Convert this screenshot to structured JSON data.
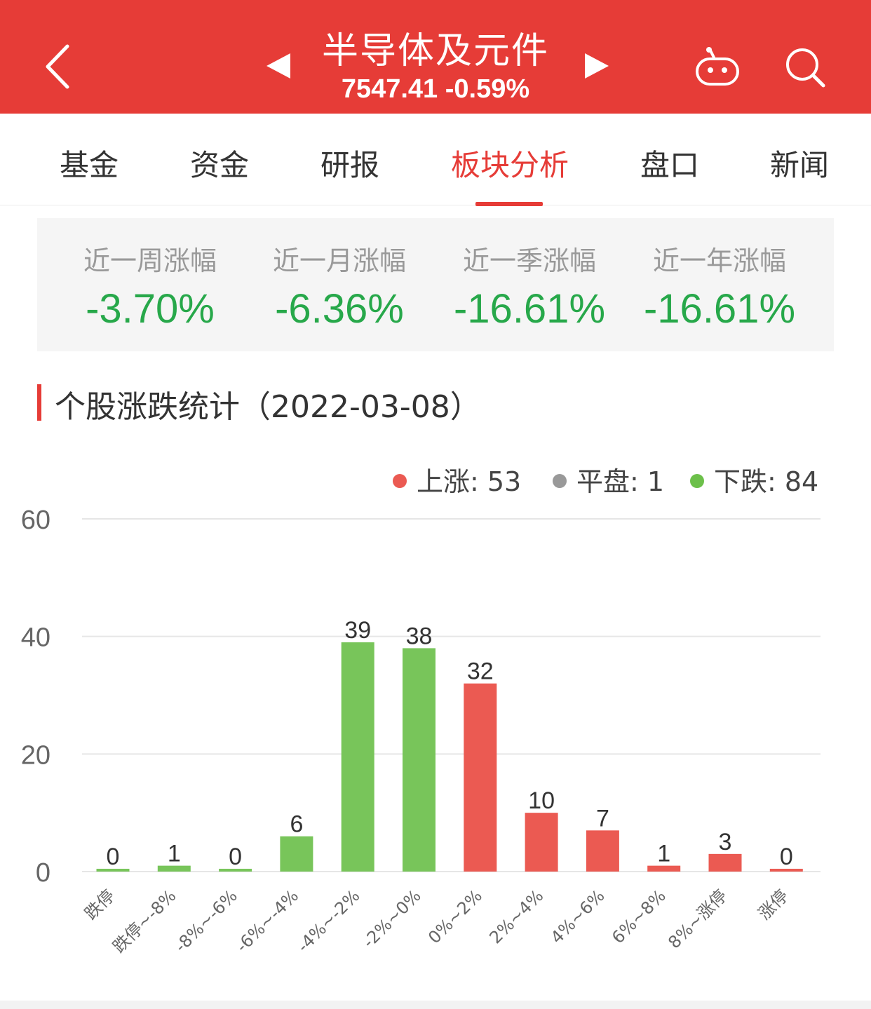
{
  "header": {
    "title": "半导体及元件",
    "subtitle": "7547.41 -0.59%",
    "back_icon": "chevron-left-icon",
    "prev_icon": "triangle-left-icon",
    "next_icon": "triangle-right-icon",
    "robot_icon": "robot-icon",
    "search_icon": "search-icon"
  },
  "tabs": [
    {
      "label": "基金"
    },
    {
      "label": "资金"
    },
    {
      "label": "研报"
    },
    {
      "label": "板块分析",
      "active": true
    },
    {
      "label": "盘口"
    },
    {
      "label": "新闻"
    }
  ],
  "performance": [
    {
      "label": "近一周涨幅",
      "value": "-3.70%"
    },
    {
      "label": "近一月涨幅",
      "value": "-6.36%"
    },
    {
      "label": "近一季涨幅",
      "value": "-16.61%"
    },
    {
      "label": "近一年涨幅",
      "value": "-16.61%"
    }
  ],
  "section_title": "个股涨跌统计（2022-03-08）",
  "legend": [
    {
      "label": "上涨: 53",
      "color": "#eb5a52"
    },
    {
      "label": "平盘: 1",
      "color": "#999999"
    },
    {
      "label": "下跌: 84",
      "color": "#6cc04a"
    }
  ],
  "colors": {
    "accent": "#e63c37",
    "up": "#eb5a52",
    "down": "#78c55a",
    "negative_text": "#27a84a"
  },
  "chart_data": {
    "type": "bar",
    "categories": [
      "跌停",
      "跌停~-8%",
      "-8%~-6%",
      "-6%~-4%",
      "-4%~-2%",
      "-2%~0%",
      "0%~2%",
      "2%~4%",
      "4%~6%",
      "6%~8%",
      "8%~涨停",
      "涨停"
    ],
    "values": [
      0,
      1,
      0,
      6,
      39,
      38,
      32,
      10,
      7,
      1,
      3,
      0
    ],
    "bar_colors": [
      "#78c55a",
      "#78c55a",
      "#78c55a",
      "#78c55a",
      "#78c55a",
      "#78c55a",
      "#eb5a52",
      "#eb5a52",
      "#eb5a52",
      "#eb5a52",
      "#eb5a52",
      "#eb5a52"
    ],
    "yticks": [
      "0",
      "20",
      "40",
      "60"
    ],
    "ylim": [
      0,
      60
    ],
    "grid": true,
    "legend_position": "top-right"
  }
}
